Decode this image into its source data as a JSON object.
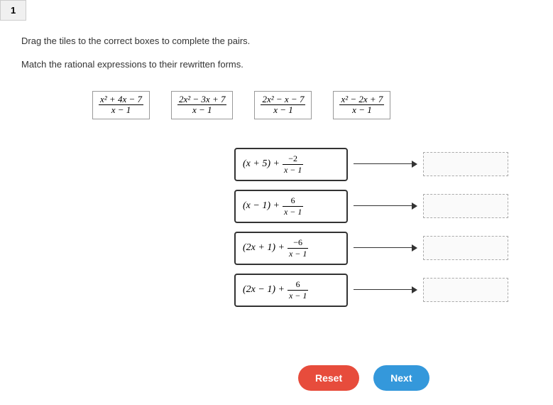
{
  "tab": {
    "label": "1"
  },
  "instructions": {
    "line1": "Drag the tiles to the correct boxes to complete the pairs.",
    "line2": "Match the rational expressions to their rewritten forms."
  },
  "tiles": [
    {
      "num": "x² + 4x − 7",
      "den": "x − 1"
    },
    {
      "num": "2x² − 3x + 7",
      "den": "x − 1"
    },
    {
      "num": "2x² − x − 7",
      "den": "x − 1"
    },
    {
      "num": "x² − 2x + 7",
      "den": "x − 1"
    }
  ],
  "expressions": [
    {
      "main": "(x + 5) + ",
      "fnum": "−2",
      "fden": "x − 1"
    },
    {
      "main": "(x − 1) + ",
      "fnum": "6",
      "fden": "x − 1"
    },
    {
      "main": "(2x + 1) + ",
      "fnum": "−6",
      "fden": "x − 1"
    },
    {
      "main": "(2x − 1) + ",
      "fnum": "6",
      "fden": "x − 1"
    }
  ],
  "buttons": {
    "reset": "Reset",
    "next": "Next",
    "reset_color": "#e74c3c",
    "next_color": "#3498db"
  }
}
